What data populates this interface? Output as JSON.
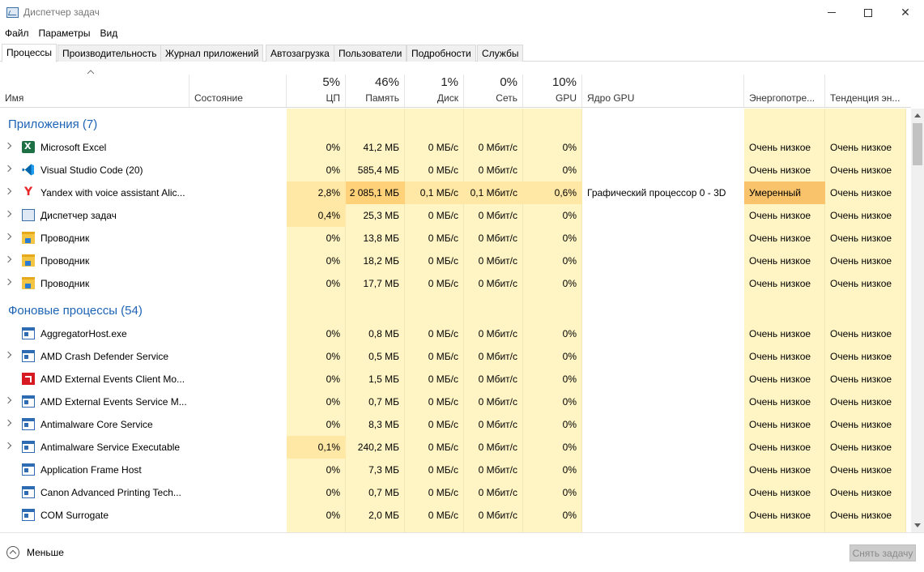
{
  "window": {
    "title": "Диспетчер задач"
  },
  "menu": [
    "Файл",
    "Параметры",
    "Вид"
  ],
  "tabs": [
    "Процессы",
    "Производительность",
    "Журнал приложений",
    "Автозагрузка",
    "Пользователи",
    "Подробности",
    "Службы"
  ],
  "columns": {
    "name": "Имя",
    "status": "Состояние",
    "cpu": {
      "pct": "5%",
      "label": "ЦП"
    },
    "memory": {
      "pct": "46%",
      "label": "Память"
    },
    "disk": {
      "pct": "1%",
      "label": "Диск"
    },
    "network": {
      "pct": "0%",
      "label": "Сеть"
    },
    "gpu": {
      "pct": "10%",
      "label": "GPU"
    },
    "gpu_engine": "Ядро GPU",
    "power": "Энергопотре...",
    "power_trend": "Тенденция эн..."
  },
  "groups": [
    {
      "title": "Приложения (7)",
      "rows": [
        {
          "name": "Microsoft Excel",
          "icon": "excel-icon",
          "expand": true,
          "cpu": "0%",
          "mem": "41,2 МБ",
          "disk": "0 МБ/с",
          "net": "0 Мбит/с",
          "gpu": "0%",
          "engine": "",
          "power": "Очень низкое",
          "trend": "Очень низкое"
        },
        {
          "name": "Visual Studio Code (20)",
          "icon": "vscode-icon",
          "expand": true,
          "cpu": "0%",
          "mem": "585,4 МБ",
          "disk": "0 МБ/с",
          "net": "0 Мбит/с",
          "gpu": "0%",
          "engine": "",
          "power": "Очень низкое",
          "trend": "Очень низкое"
        },
        {
          "name": "Yandex with voice assistant Alic...",
          "icon": "yandex-icon",
          "expand": true,
          "cpu": "2,8%",
          "mem": "2 085,1 МБ",
          "disk": "0,1 МБ/с",
          "net": "0,1 Мбит/с",
          "gpu": "0,6%",
          "engine": "Графический процессор 0 - 3D",
          "power": "Умеренный",
          "trend": "Очень низкое"
        },
        {
          "name": "Диспетчер задач",
          "icon": "task-manager-icon",
          "expand": true,
          "cpu": "0,4%",
          "mem": "25,3 МБ",
          "disk": "0 МБ/с",
          "net": "0 Мбит/с",
          "gpu": "0%",
          "engine": "",
          "power": "Очень низкое",
          "trend": "Очень низкое"
        },
        {
          "name": "Проводник",
          "icon": "explorer-icon",
          "expand": true,
          "cpu": "0%",
          "mem": "13,8 МБ",
          "disk": "0 МБ/с",
          "net": "0 Мбит/с",
          "gpu": "0%",
          "engine": "",
          "power": "Очень низкое",
          "trend": "Очень низкое"
        },
        {
          "name": "Проводник",
          "icon": "explorer-icon",
          "expand": true,
          "cpu": "0%",
          "mem": "18,2 МБ",
          "disk": "0 МБ/с",
          "net": "0 Мбит/с",
          "gpu": "0%",
          "engine": "",
          "power": "Очень низкое",
          "trend": "Очень низкое"
        },
        {
          "name": "Проводник",
          "icon": "explorer-icon",
          "expand": true,
          "cpu": "0%",
          "mem": "17,7 МБ",
          "disk": "0 МБ/с",
          "net": "0 Мбит/с",
          "gpu": "0%",
          "engine": "",
          "power": "Очень низкое",
          "trend": "Очень низкое"
        }
      ]
    },
    {
      "title": "Фоновые процессы (54)",
      "rows": [
        {
          "name": "AggregatorHost.exe",
          "icon": "service-icon",
          "expand": false,
          "cpu": "0%",
          "mem": "0,8 МБ",
          "disk": "0 МБ/с",
          "net": "0 Мбит/с",
          "gpu": "0%",
          "engine": "",
          "power": "Очень низкое",
          "trend": "Очень низкое"
        },
        {
          "name": "AMD Crash Defender Service",
          "icon": "service-icon",
          "expand": true,
          "cpu": "0%",
          "mem": "0,5 МБ",
          "disk": "0 МБ/с",
          "net": "0 Мбит/с",
          "gpu": "0%",
          "engine": "",
          "power": "Очень низкое",
          "trend": "Очень низкое"
        },
        {
          "name": "AMD External Events Client Mo...",
          "icon": "amd-icon",
          "expand": false,
          "cpu": "0%",
          "mem": "1,5 МБ",
          "disk": "0 МБ/с",
          "net": "0 Мбит/с",
          "gpu": "0%",
          "engine": "",
          "power": "Очень низкое",
          "trend": "Очень низкое"
        },
        {
          "name": "AMD External Events Service M...",
          "icon": "service-icon",
          "expand": true,
          "cpu": "0%",
          "mem": "0,7 МБ",
          "disk": "0 МБ/с",
          "net": "0 Мбит/с",
          "gpu": "0%",
          "engine": "",
          "power": "Очень низкое",
          "trend": "Очень низкое"
        },
        {
          "name": "Antimalware Core Service",
          "icon": "service-icon",
          "expand": true,
          "cpu": "0%",
          "mem": "8,3 МБ",
          "disk": "0 МБ/с",
          "net": "0 Мбит/с",
          "gpu": "0%",
          "engine": "",
          "power": "Очень низкое",
          "trend": "Очень низкое"
        },
        {
          "name": "Antimalware Service Executable",
          "icon": "service-icon",
          "expand": true,
          "cpu": "0,1%",
          "mem": "240,2 МБ",
          "disk": "0 МБ/с",
          "net": "0 Мбит/с",
          "gpu": "0%",
          "engine": "",
          "power": "Очень низкое",
          "trend": "Очень низкое"
        },
        {
          "name": "Application Frame Host",
          "icon": "service-icon",
          "expand": false,
          "cpu": "0%",
          "mem": "7,3 МБ",
          "disk": "0 МБ/с",
          "net": "0 Мбит/с",
          "gpu": "0%",
          "engine": "",
          "power": "Очень низкое",
          "trend": "Очень низкое"
        },
        {
          "name": "Canon Advanced Printing Tech...",
          "icon": "service-icon",
          "expand": false,
          "cpu": "0%",
          "mem": "0,7 МБ",
          "disk": "0 МБ/с",
          "net": "0 Мбит/с",
          "gpu": "0%",
          "engine": "",
          "power": "Очень низкое",
          "trend": "Очень низкое"
        },
        {
          "name": "COM Surrogate",
          "icon": "service-icon",
          "expand": false,
          "cpu": "0%",
          "mem": "2,0 МБ",
          "disk": "0 МБ/с",
          "net": "0 Мбит/с",
          "gpu": "0%",
          "engine": "",
          "power": "Очень низкое",
          "trend": "Очень низкое"
        }
      ]
    }
  ],
  "footer": {
    "less_label": "Меньше",
    "end_task_label": "Снять задачу"
  },
  "colors": {
    "heat_light": "#fff4c4",
    "heat_medium": "#ffe8a6",
    "heat_strong": "#ffd27a",
    "power_moderate": "#f8c36a",
    "group_title": "#1e64b4"
  }
}
